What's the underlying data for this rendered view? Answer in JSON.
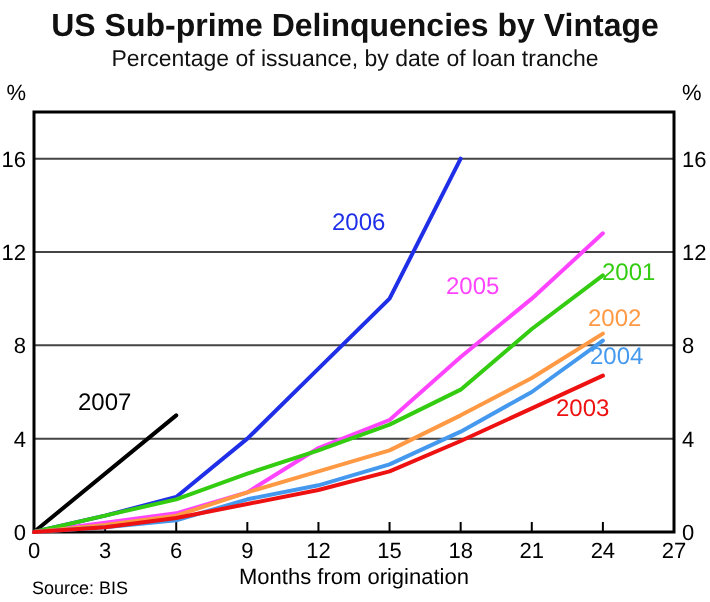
{
  "chart_data": {
    "type": "line",
    "title": "US Sub-prime Delinquencies by Vintage",
    "subtitle": "Percentage of issuance, by date of loan tranche",
    "xlabel": "Months from origination",
    "ylabel": "%",
    "y2label": "%",
    "annotations": [
      "Source: BIS"
    ],
    "xlim": [
      0,
      27
    ],
    "xticks": [
      0,
      3,
      6,
      9,
      12,
      15,
      18,
      21,
      24,
      27
    ],
    "ylim": [
      0,
      18
    ],
    "yticks": [
      0,
      4,
      8,
      12,
      16
    ],
    "y2lim": [
      0,
      18
    ],
    "y2ticks": [
      0,
      4,
      8,
      12,
      16
    ],
    "grid": "y",
    "marker": "none",
    "line_style": "solid",
    "series": [
      {
        "name": "2007",
        "color": "#000000",
        "x": [
          0,
          6
        ],
        "values": [
          0,
          5
        ]
      },
      {
        "name": "2006",
        "color": "#1f2fe8",
        "x": [
          0,
          3,
          6,
          9,
          12,
          15,
          18
        ],
        "values": [
          0,
          0.7,
          1.5,
          4,
          7,
          10,
          16
        ]
      },
      {
        "name": "2005",
        "color": "#ff44ff",
        "x": [
          0,
          3,
          6,
          9,
          12,
          15,
          18,
          21,
          24
        ],
        "values": [
          0,
          0.4,
          0.8,
          1.7,
          3.6,
          4.8,
          7.5,
          10,
          12.8
        ]
      },
      {
        "name": "2001",
        "color": "#33cc11",
        "x": [
          0,
          3,
          6,
          9,
          12,
          15,
          18,
          21,
          24
        ],
        "values": [
          0,
          0.7,
          1.4,
          2.5,
          3.5,
          4.6,
          6.1,
          8.7,
          11
        ]
      },
      {
        "name": "2002",
        "color": "#ff9944",
        "x": [
          0,
          3,
          6,
          9,
          12,
          15,
          18,
          21,
          24
        ],
        "values": [
          0,
          0.3,
          0.7,
          1.7,
          2.6,
          3.5,
          5,
          6.6,
          8.5
        ]
      },
      {
        "name": "2004",
        "color": "#4499ee",
        "x": [
          0,
          3,
          6,
          9,
          12,
          15,
          18,
          21,
          24
        ],
        "values": [
          0,
          0.2,
          0.5,
          1.4,
          2,
          2.9,
          4.3,
          6,
          8.2
        ]
      },
      {
        "name": "2003",
        "color": "#ee1111",
        "x": [
          0,
          3,
          6,
          9,
          12,
          15,
          18,
          21,
          24
        ],
        "values": [
          0,
          0.2,
          0.6,
          1.2,
          1.8,
          2.6,
          3.9,
          5.3,
          6.7
        ]
      }
    ]
  }
}
